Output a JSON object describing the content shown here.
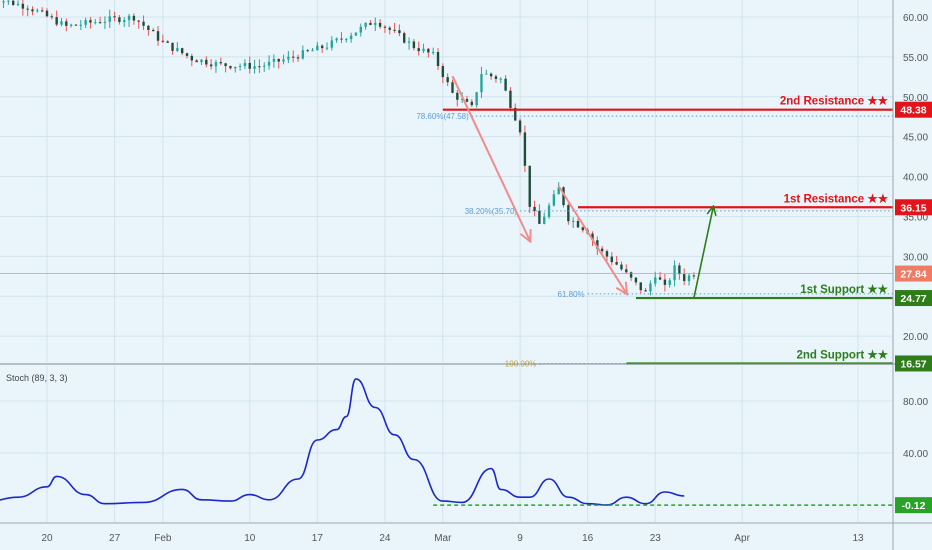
{
  "colors": {
    "background": "#e9f5fb",
    "grid": "#d2e3ec",
    "candle_up": "#26a69a",
    "candle_down": "#ef5350",
    "candle_body_color": "#1e4d3c",
    "resistance": "#e3131a",
    "support": "#2e7d1a",
    "fib_level": "#5b9bd5",
    "fib_100": "#c9a21b",
    "arrow_down": "#f08c8c",
    "arrow_up": "#2e7d1a",
    "stoch": "#1c28c8",
    "stoch_level": "#27a327",
    "last_price": "#ee7b63",
    "axis_text": "#555555"
  },
  "chart_data": [
    {
      "type": "candlestick",
      "panel": "price",
      "x_axis": {
        "type": "date",
        "range": [
          "2020-01-14",
          "2020-04-15"
        ],
        "tick_labels": [
          {
            "date": "2020-01-20",
            "label": "20"
          },
          {
            "date": "2020-01-27",
            "label": "27"
          },
          {
            "date": "2020-02-01",
            "label": "Feb"
          },
          {
            "date": "2020-02-10",
            "label": "10"
          },
          {
            "date": "2020-02-17",
            "label": "17"
          },
          {
            "date": "2020-02-24",
            "label": "24"
          },
          {
            "date": "2020-03-01",
            "label": "Mar"
          },
          {
            "date": "2020-03-09",
            "label": "9"
          },
          {
            "date": "2020-03-16",
            "label": "16"
          },
          {
            "date": "2020-03-23",
            "label": "23"
          },
          {
            "date": "2020-04-01",
            "label": "Apr"
          },
          {
            "date": "2020-04-13",
            "label": "13"
          }
        ]
      },
      "y_axis": {
        "range": [
          14,
          63
        ],
        "ticks": [
          15,
          20,
          25,
          30,
          35,
          40,
          45,
          50,
          55,
          60
        ],
        "tick_labels": [
          "15.00",
          "20.00",
          "25.00",
          "30.00",
          "35.00",
          "40.00",
          "45.00",
          "50.00",
          "55.00",
          "60.00"
        ],
        "position": "right"
      },
      "approx_close_path": [
        {
          "date": "2020-01-14",
          "close": 62.5
        },
        {
          "date": "2020-01-18",
          "close": 61.3
        },
        {
          "date": "2020-01-22",
          "close": 58.8
        },
        {
          "date": "2020-01-26",
          "close": 59.6
        },
        {
          "date": "2020-01-29",
          "close": 60.0
        },
        {
          "date": "2020-02-01",
          "close": 56.8
        },
        {
          "date": "2020-02-04",
          "close": 54.8
        },
        {
          "date": "2020-02-07",
          "close": 54.0
        },
        {
          "date": "2020-02-11",
          "close": 53.8
        },
        {
          "date": "2020-02-14",
          "close": 54.8
        },
        {
          "date": "2020-02-18",
          "close": 56.4
        },
        {
          "date": "2020-02-21",
          "close": 58.2
        },
        {
          "date": "2020-02-23",
          "close": 59.6
        },
        {
          "date": "2020-02-25",
          "close": 58.0
        },
        {
          "date": "2020-02-27",
          "close": 56.3
        },
        {
          "date": "2020-02-29",
          "close": 55.2
        },
        {
          "date": "2020-03-02",
          "close": 50.4
        },
        {
          "date": "2020-03-04",
          "close": 48.6
        },
        {
          "date": "2020-03-05",
          "close": 53.0
        },
        {
          "date": "2020-03-07",
          "close": 52.2
        },
        {
          "date": "2020-03-09",
          "close": 45.9
        },
        {
          "date": "2020-03-10",
          "close": 36.5
        },
        {
          "date": "2020-03-11",
          "close": 34.0
        },
        {
          "date": "2020-03-13",
          "close": 38.5
        },
        {
          "date": "2020-03-14",
          "close": 34.8
        },
        {
          "date": "2020-03-16",
          "close": 33.2
        },
        {
          "date": "2020-03-17",
          "close": 31.0
        },
        {
          "date": "2020-03-19",
          "close": 29.0
        },
        {
          "date": "2020-03-21",
          "close": 26.5
        },
        {
          "date": "2020-03-22",
          "close": 25.4
        },
        {
          "date": "2020-03-23",
          "close": 27.8
        },
        {
          "date": "2020-03-24",
          "close": 26.0
        },
        {
          "date": "2020-03-25",
          "close": 28.5
        },
        {
          "date": "2020-03-26",
          "close": 27.2
        },
        {
          "date": "2020-03-27",
          "close": 27.84
        }
      ],
      "last_price": {
        "value": 27.84,
        "label": "27.84"
      },
      "levels": [
        {
          "name": "2nd Resistance",
          "stars": "★★",
          "label": "2nd Resistance ★★",
          "value": 48.38,
          "tag": "48.38",
          "kind": "resistance",
          "from": "2020-03-01"
        },
        {
          "name": "1st Resistance",
          "stars": "★★",
          "label": "1st Resistance ★★",
          "value": 36.15,
          "tag": "36.15",
          "kind": "resistance",
          "from": "2020-03-15"
        },
        {
          "name": "1st Support",
          "stars": "★★",
          "label": "1st Support ★★",
          "value": 24.77,
          "tag": "24.77",
          "kind": "support",
          "from": "2020-03-21"
        },
        {
          "name": "2nd Support",
          "stars": "★★",
          "label": "2nd Support ★★",
          "value": 16.57,
          "tag": "16.57",
          "kind": "support",
          "from": "2020-03-20"
        }
      ],
      "fib_levels": [
        {
          "label": "78.60%(47.58)",
          "value": 47.58,
          "from": "2020-03-04"
        },
        {
          "label": "38.20%(35.70)",
          "value": 35.7,
          "from": "2020-03-09"
        },
        {
          "label": "61.80%",
          "value": 25.3,
          "from": "2020-03-16"
        },
        {
          "label": "100.00%",
          "value": 16.57,
          "from": "2020-03-11"
        }
      ],
      "arrows": [
        {
          "kind": "down",
          "from": {
            "date": "2020-03-02",
            "value": 52.6
          },
          "to": {
            "date": "2020-03-10",
            "value": 32.0
          }
        },
        {
          "kind": "down",
          "from": {
            "date": "2020-03-13",
            "value": 38.8
          },
          "to": {
            "date": "2020-03-20",
            "value": 25.4
          }
        },
        {
          "kind": "up",
          "from": {
            "date": "2020-03-27",
            "value": 24.77
          },
          "to": {
            "date": "2020-03-29",
            "value": 36.15
          }
        }
      ]
    },
    {
      "type": "line",
      "panel": "stochastic",
      "label": "Stoch (89, 3, 3)",
      "y_axis": {
        "range": [
          -12,
          105
        ],
        "ticks": [
          40,
          80
        ],
        "tick_labels": [
          "40.00",
          "80.00"
        ],
        "position": "right"
      },
      "series": [
        {
          "points": [
            {
              "date": "2020-01-14",
              "value": 3
            },
            {
              "date": "2020-01-17",
              "value": 6
            },
            {
              "date": "2020-01-20",
              "value": 14
            },
            {
              "date": "2020-01-21",
              "value": 22
            },
            {
              "date": "2020-01-24",
              "value": 8
            },
            {
              "date": "2020-01-26",
              "value": 1
            },
            {
              "date": "2020-01-30",
              "value": 2
            },
            {
              "date": "2020-02-03",
              "value": 12
            },
            {
              "date": "2020-02-05",
              "value": 4
            },
            {
              "date": "2020-02-08",
              "value": 3
            },
            {
              "date": "2020-02-10",
              "value": 8
            },
            {
              "date": "2020-02-12",
              "value": 4
            },
            {
              "date": "2020-02-15",
              "value": 20
            },
            {
              "date": "2020-02-17",
              "value": 50
            },
            {
              "date": "2020-02-19",
              "value": 58
            },
            {
              "date": "2020-02-20",
              "value": 68
            },
            {
              "date": "2020-02-21",
              "value": 97
            },
            {
              "date": "2020-02-23",
              "value": 75
            },
            {
              "date": "2020-02-25",
              "value": 54
            },
            {
              "date": "2020-02-27",
              "value": 35
            },
            {
              "date": "2020-03-01",
              "value": 3
            },
            {
              "date": "2020-03-03",
              "value": 2
            },
            {
              "date": "2020-03-06",
              "value": 28
            },
            {
              "date": "2020-03-07",
              "value": 12
            },
            {
              "date": "2020-03-09",
              "value": 6
            },
            {
              "date": "2020-03-10",
              "value": 6
            },
            {
              "date": "2020-03-12",
              "value": 20
            },
            {
              "date": "2020-03-14",
              "value": 6
            },
            {
              "date": "2020-03-16",
              "value": 1
            },
            {
              "date": "2020-03-18",
              "value": 0
            },
            {
              "date": "2020-03-20",
              "value": 6
            },
            {
              "date": "2020-03-22",
              "value": 1
            },
            {
              "date": "2020-03-24",
              "value": 10
            },
            {
              "date": "2020-03-26",
              "value": 7
            }
          ]
        }
      ],
      "level": {
        "value": -0.12,
        "tag": "-0.12"
      }
    }
  ]
}
